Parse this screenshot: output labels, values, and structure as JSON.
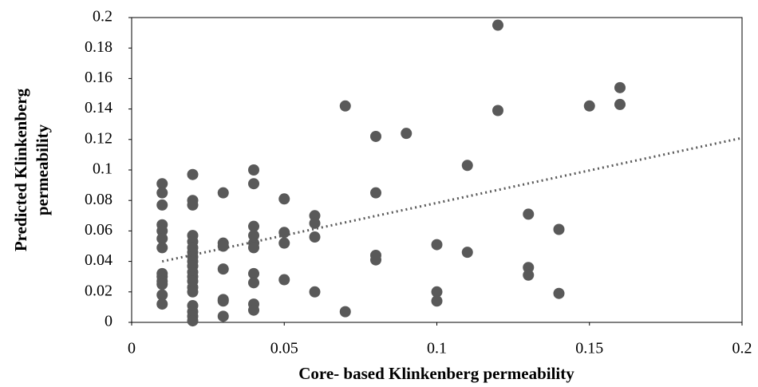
{
  "chart_data": {
    "type": "scatter",
    "x_label": "Core- based Klinkenberg permeability",
    "y_label": [
      "Predicted Klinkenberg",
      "permeability"
    ],
    "series": [
      {
        "color": "#595959",
        "x": [
          0.01,
          0.01,
          0.01,
          0.01,
          0.01,
          0.01,
          0.01,
          0.01,
          0.01,
          0.01,
          0.01,
          0.01,
          0.01,
          0.02,
          0.02,
          0.02,
          0.02,
          0.02,
          0.02,
          0.02,
          0.02,
          0.02,
          0.02,
          0.02,
          0.02,
          0.02,
          0.02,
          0.02,
          0.02,
          0.02,
          0.02,
          0.02,
          0.03,
          0.03,
          0.03,
          0.03,
          0.03,
          0.03,
          0.03,
          0.04,
          0.04,
          0.04,
          0.04,
          0.04,
          0.04,
          0.04,
          0.04,
          0.04,
          0.04,
          0.05,
          0.05,
          0.05,
          0.05,
          0.06,
          0.06,
          0.06,
          0.06,
          0.07,
          0.07,
          0.08,
          0.08,
          0.08,
          0.08,
          0.09,
          0.1,
          0.1,
          0.1,
          0.11,
          0.11,
          0.12,
          0.12,
          0.13,
          0.13,
          0.13,
          0.14,
          0.14,
          0.15,
          0.16,
          0.16
        ],
        "y": [
          0.091,
          0.085,
          0.077,
          0.064,
          0.06,
          0.055,
          0.049,
          0.032,
          0.03,
          0.027,
          0.025,
          0.018,
          0.012,
          0.097,
          0.08,
          0.077,
          0.057,
          0.053,
          0.049,
          0.046,
          0.043,
          0.04,
          0.037,
          0.033,
          0.03,
          0.027,
          0.023,
          0.02,
          0.011,
          0.007,
          0.004,
          0.001,
          0.085,
          0.052,
          0.05,
          0.035,
          0.015,
          0.014,
          0.004,
          0.1,
          0.091,
          0.063,
          0.057,
          0.052,
          0.049,
          0.032,
          0.026,
          0.012,
          0.008,
          0.081,
          0.059,
          0.052,
          0.028,
          0.07,
          0.065,
          0.056,
          0.02,
          0.142,
          0.007,
          0.122,
          0.085,
          0.044,
          0.041,
          0.124,
          0.051,
          0.02,
          0.014,
          0.103,
          0.046,
          0.195,
          0.139,
          0.071,
          0.036,
          0.031,
          0.061,
          0.019,
          0.142,
          0.154,
          0.143
        ]
      }
    ],
    "trendline": {
      "x": [
        0.01,
        0.2
      ],
      "y": [
        0.04,
        0.121
      ],
      "color": "#595959",
      "style": "dotted"
    },
    "xlim": [
      0,
      0.2
    ],
    "xticks": [
      0,
      0.05,
      0.1,
      0.15,
      0.2
    ],
    "ylim": [
      0,
      0.2
    ],
    "yticks": [
      0,
      0.02,
      0.04,
      0.06,
      0.08,
      0.1,
      0.12,
      0.14,
      0.16,
      0.18,
      0.2
    ],
    "grid": false
  }
}
